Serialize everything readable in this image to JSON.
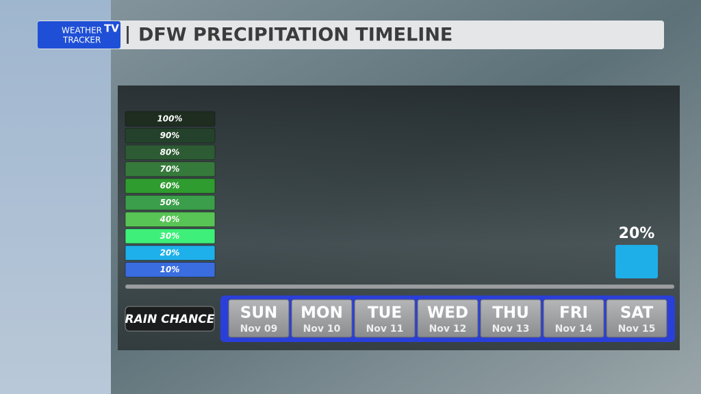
{
  "chart_data": {
    "type": "bar",
    "title": "DFW PRECIPITATION TIMELINE",
    "logo": {
      "line1": "WEATHER",
      "line2": "TRACKER",
      "badge": "TV"
    },
    "axis_label": "RAIN CHANCE",
    "categories": [
      "SUN",
      "MON",
      "TUE",
      "WED",
      "THU",
      "FRI",
      "SAT"
    ],
    "dates": [
      "Nov 09",
      "Nov 10",
      "Nov 11",
      "Nov 12",
      "Nov 13",
      "Nov 14",
      "Nov 15"
    ],
    "values": [
      0,
      0,
      0,
      0,
      0,
      0,
      20
    ],
    "value_labels": [
      null,
      null,
      null,
      null,
      null,
      null,
      "20%"
    ],
    "color": "#1eaee8",
    "ylim": [
      0,
      100
    ],
    "yticks": [
      {
        "value": 10,
        "label": "10%"
      },
      {
        "value": 20,
        "label": "20%"
      },
      {
        "value": 30,
        "label": "30%"
      },
      {
        "value": 40,
        "label": "40%"
      },
      {
        "value": 50,
        "label": "50%"
      },
      {
        "value": 60,
        "label": "60%"
      },
      {
        "value": 70,
        "label": "70%"
      },
      {
        "value": 80,
        "label": "80%"
      },
      {
        "value": 90,
        "label": "90%"
      },
      {
        "value": 100,
        "label": "100%"
      }
    ],
    "tick_colors": [
      "#3a6ee0",
      "#1eb0ea",
      "#3ef07a",
      "#58c455",
      "#3a9e4a",
      "#2f9c2f",
      "#367a3b",
      "#2d5c34",
      "#24422b",
      "#1e2d20"
    ]
  }
}
